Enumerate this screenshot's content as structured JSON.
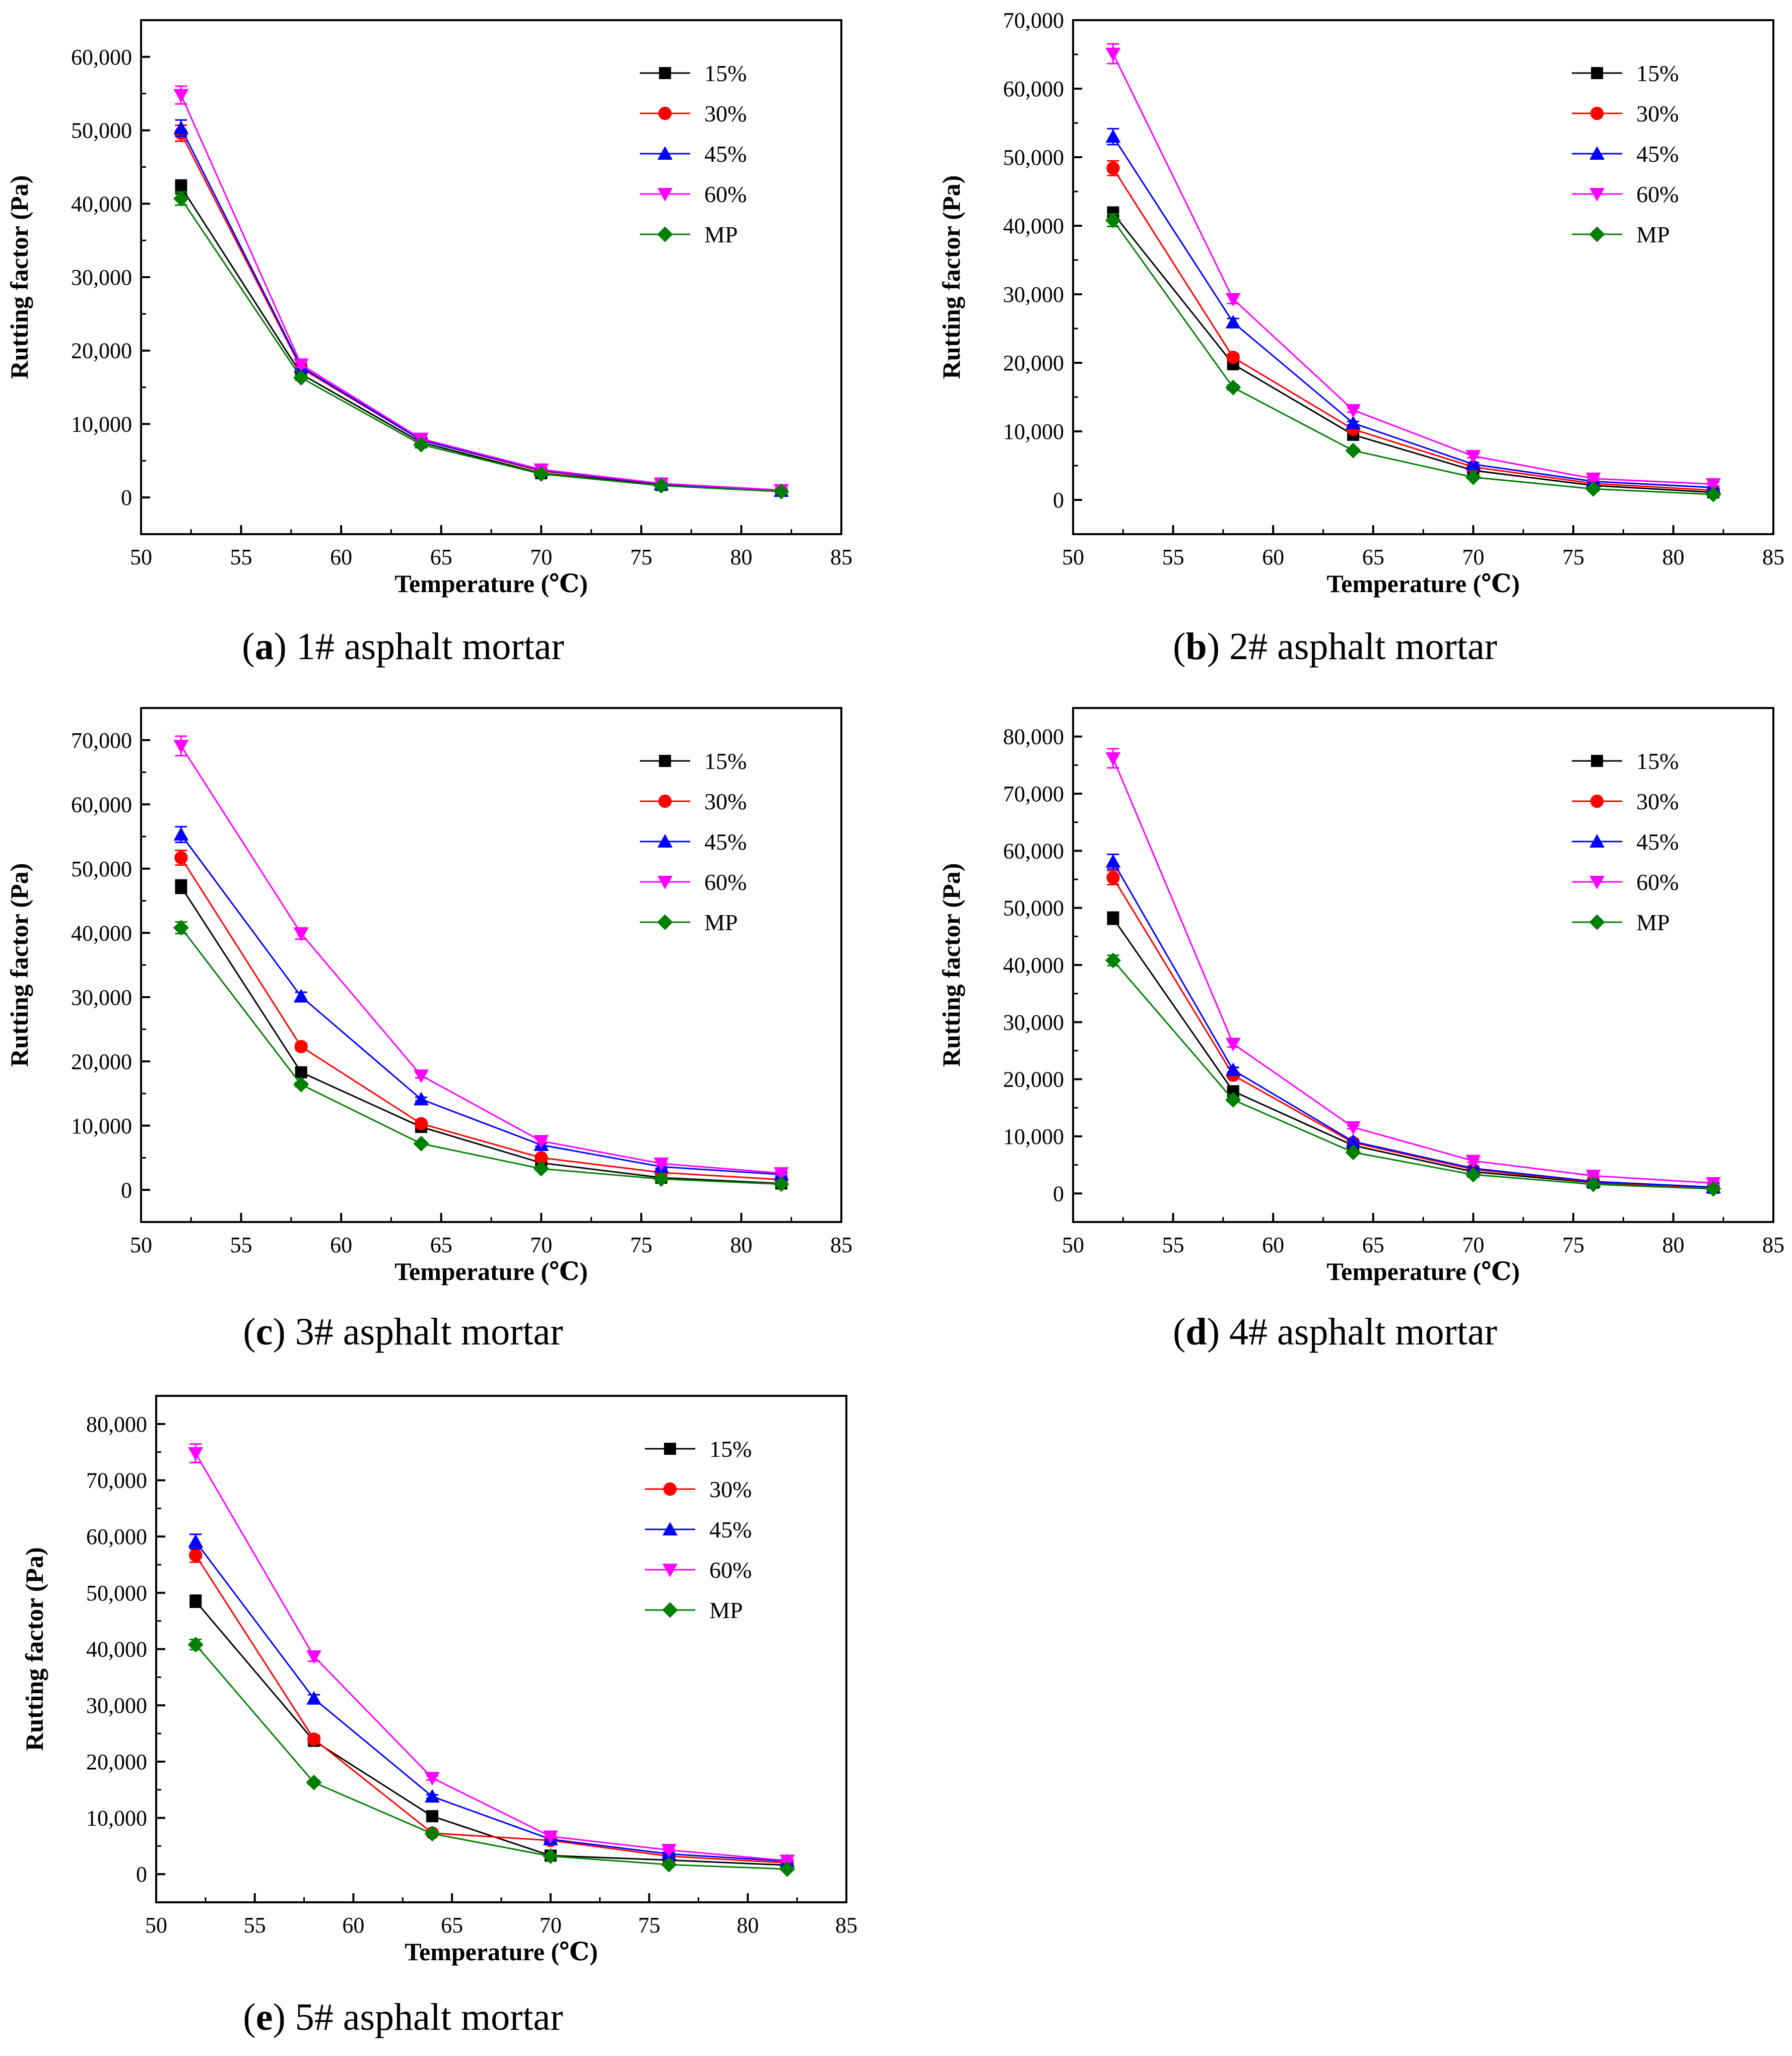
{
  "figure": {
    "markers": {
      "15%": "square",
      "30%": "circle",
      "45%": "triangle-up",
      "60%": "triangle-down",
      "MP": "diamond"
    },
    "colors": {
      "15%": "#000000",
      "30%": "#ff0000",
      "45%": "#0000ff",
      "60%": "#ff00ff",
      "MP": "#008000"
    }
  },
  "chart_data": [
    {
      "type": "line",
      "panel_label": "a",
      "caption": "1# asphalt mortar",
      "xlabel": "Temperature (℃)",
      "ylabel": "Rutting factor (Pa)",
      "xlim": [
        50,
        85
      ],
      "ylim": [
        -5000,
        65000
      ],
      "xticks": [
        50,
        55,
        60,
        65,
        70,
        75,
        80,
        85
      ],
      "xtick_labels": [
        "50",
        "55",
        "60",
        "65",
        "70",
        "75",
        "80",
        "85"
      ],
      "yticks": [
        0,
        10000,
        20000,
        30000,
        40000,
        50000,
        60000
      ],
      "ytick_labels": [
        "0",
        "10,000",
        "20,000",
        "30,000",
        "40,000",
        "50,000",
        "60,000"
      ],
      "legend_position": "top-right",
      "x": [
        52,
        58,
        64,
        70,
        76,
        82
      ],
      "series": [
        {
          "name": "15%",
          "values": [
            42300,
            16800,
            7500,
            3300,
            1700,
            900
          ]
        },
        {
          "name": "30%",
          "values": [
            49600,
            17600,
            7800,
            3600,
            1800,
            900
          ]
        },
        {
          "name": "45%",
          "values": [
            50300,
            17800,
            7800,
            3700,
            1800,
            900
          ]
        },
        {
          "name": "60%",
          "values": [
            54800,
            18100,
            8000,
            3800,
            1900,
            1000
          ]
        },
        {
          "name": "MP",
          "values": [
            40700,
            16300,
            7200,
            3200,
            1600,
            800
          ]
        }
      ]
    },
    {
      "type": "line",
      "panel_label": "b",
      "caption": "2# asphalt mortar",
      "xlabel": "Temperature (℃)",
      "ylabel": "Rutting factor (Pa)",
      "xlim": [
        50,
        85
      ],
      "ylim": [
        -5000,
        70000
      ],
      "xticks": [
        50,
        55,
        60,
        65,
        70,
        75,
        80,
        85
      ],
      "xtick_labels": [
        "50",
        "55",
        "60",
        "65",
        "70",
        "75",
        "80",
        "85"
      ],
      "yticks": [
        0,
        10000,
        20000,
        30000,
        40000,
        50000,
        60000,
        70000
      ],
      "ytick_labels": [
        "0",
        "10,000",
        "20,000",
        "30,000",
        "40,000",
        "50,000",
        "60,000",
        "70,000"
      ],
      "legend_position": "top-right",
      "x": [
        52,
        58,
        64,
        70,
        76,
        82
      ],
      "series": [
        {
          "name": "15%",
          "values": [
            41800,
            19800,
            9500,
            4300,
            2100,
            1100
          ]
        },
        {
          "name": "30%",
          "values": [
            48400,
            20800,
            10300,
            4800,
            2400,
            1400
          ]
        },
        {
          "name": "45%",
          "values": [
            53000,
            25900,
            11200,
            5200,
            2700,
            1800
          ]
        },
        {
          "name": "60%",
          "values": [
            65100,
            29300,
            13100,
            6400,
            3100,
            2300
          ]
        },
        {
          "name": "MP",
          "values": [
            40800,
            16400,
            7200,
            3300,
            1600,
            800
          ]
        }
      ]
    },
    {
      "type": "line",
      "panel_label": "c",
      "caption": "3# asphalt mortar",
      "xlabel": "Temperature (℃)",
      "ylabel": "Rutting factor (Pa)",
      "xlim": [
        50,
        85
      ],
      "ylim": [
        -5000,
        75000
      ],
      "xticks": [
        50,
        55,
        60,
        65,
        70,
        75,
        80,
        85
      ],
      "xtick_labels": [
        "50",
        "55",
        "60",
        "65",
        "70",
        "75",
        "80",
        "85"
      ],
      "yticks": [
        0,
        10000,
        20000,
        30000,
        40000,
        50000,
        60000,
        70000
      ],
      "ytick_labels": [
        "0",
        "10,000",
        "20,000",
        "30,000",
        "40,000",
        "50,000",
        "60,000",
        "70,000"
      ],
      "legend_position": "top-right",
      "x": [
        52,
        58,
        64,
        70,
        76,
        82
      ],
      "series": [
        {
          "name": "15%",
          "values": [
            47200,
            18300,
            9800,
            4200,
            1900,
            1000
          ]
        },
        {
          "name": "30%",
          "values": [
            51700,
            22300,
            10300,
            5000,
            2700,
            1600
          ]
        },
        {
          "name": "45%",
          "values": [
            55300,
            30100,
            14100,
            7000,
            3600,
            2400
          ]
        },
        {
          "name": "60%",
          "values": [
            69100,
            39900,
            17800,
            7600,
            4100,
            2600
          ]
        },
        {
          "name": "MP",
          "values": [
            40800,
            16400,
            7200,
            3300,
            1700,
            900
          ]
        }
      ]
    },
    {
      "type": "line",
      "panel_label": "d",
      "caption": "4# asphalt mortar",
      "xlabel": "Temperature (℃)",
      "ylabel": "Rutting factor (Pa)",
      "xlim": [
        50,
        85
      ],
      "ylim": [
        -5000,
        85000
      ],
      "xticks": [
        50,
        55,
        60,
        65,
        70,
        75,
        80,
        85
      ],
      "xtick_labels": [
        "50",
        "55",
        "60",
        "65",
        "70",
        "75",
        "80",
        "85"
      ],
      "yticks": [
        0,
        10000,
        20000,
        30000,
        40000,
        50000,
        60000,
        70000,
        80000
      ],
      "ytick_labels": [
        "0",
        "10,000",
        "20,000",
        "30,000",
        "40,000",
        "50,000",
        "60,000",
        "70,000",
        "80,000"
      ],
      "legend_position": "top-right",
      "x": [
        52,
        58,
        64,
        70,
        76,
        82
      ],
      "series": [
        {
          "name": "15%",
          "values": [
            48200,
            17900,
            8400,
            3800,
            1900,
            1000
          ]
        },
        {
          "name": "30%",
          "values": [
            55300,
            20700,
            8900,
            4200,
            2000,
            1000
          ]
        },
        {
          "name": "45%",
          "values": [
            58100,
            21600,
            9100,
            4400,
            2100,
            1100
          ]
        },
        {
          "name": "60%",
          "values": [
            76200,
            26200,
            11600,
            5700,
            3100,
            1800
          ]
        },
        {
          "name": "MP",
          "values": [
            40800,
            16400,
            7200,
            3300,
            1600,
            800
          ]
        }
      ]
    },
    {
      "type": "line",
      "panel_label": "e",
      "caption": "5# asphalt mortar",
      "xlabel": "Temperature (℃)",
      "ylabel": "Rutting factor (Pa)",
      "xlim": [
        50,
        85
      ],
      "ylim": [
        -5000,
        85000
      ],
      "xticks": [
        50,
        55,
        60,
        65,
        70,
        75,
        80,
        85
      ],
      "xtick_labels": [
        "50",
        "55",
        "60",
        "65",
        "70",
        "75",
        "80",
        "85"
      ],
      "yticks": [
        0,
        10000,
        20000,
        30000,
        40000,
        50000,
        60000,
        70000,
        80000
      ],
      "ytick_labels": [
        "0",
        "10,000",
        "20,000",
        "30,000",
        "40,000",
        "50,000",
        "60,000",
        "70,000",
        "80,000"
      ],
      "legend_position": "top-right",
      "x": [
        52,
        58,
        64,
        70,
        76,
        82
      ],
      "series": [
        {
          "name": "15%",
          "values": [
            48500,
            23700,
            10300,
            3300,
            2500,
            1600
          ]
        },
        {
          "name": "30%",
          "values": [
            56700,
            24000,
            7300,
            6000,
            3200,
            2000
          ]
        },
        {
          "name": "45%",
          "values": [
            59100,
            31200,
            13800,
            6200,
            3600,
            2300
          ]
        },
        {
          "name": "60%",
          "values": [
            74800,
            38700,
            17100,
            6700,
            4300,
            2400
          ]
        },
        {
          "name": "MP",
          "values": [
            40800,
            16300,
            7200,
            3200,
            1700,
            900
          ]
        }
      ]
    }
  ]
}
